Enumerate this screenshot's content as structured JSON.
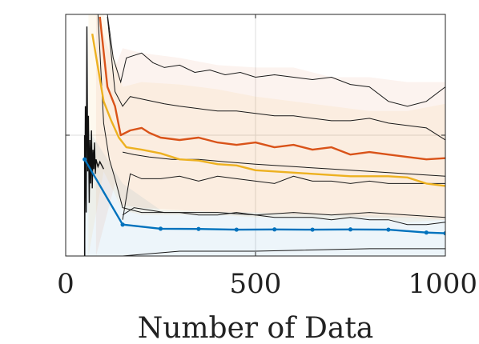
{
  "chart_data": {
    "type": "line",
    "title": "",
    "xlabel": "Number of Data",
    "ylabel": "",
    "xlim": [
      0,
      1000
    ],
    "ylim": [
      0,
      1
    ],
    "x_ticks": [
      0,
      500,
      1000
    ],
    "x_tick_labels": [
      "0",
      "500",
      "1000"
    ],
    "y_ticks": [
      0.5
    ],
    "grid": true,
    "legend": "none",
    "series": [
      {
        "color": "#0072bd",
        "marker": "dot",
        "x": [
          50,
          150,
          250,
          350,
          450,
          550,
          650,
          750,
          850,
          950,
          1000
        ],
        "y": [
          0.4,
          0.13,
          0.113,
          0.112,
          0.109,
          0.11,
          0.109,
          0.11,
          0.109,
          0.097,
          0.094
        ]
      },
      {
        "color": "#edb120",
        "x": [
          70,
          100,
          120,
          140,
          160,
          200,
          250,
          300,
          350,
          400,
          450,
          500,
          550,
          600,
          650,
          700,
          750,
          800,
          850,
          900,
          950,
          1000
        ],
        "y": [
          0.92,
          0.64,
          0.56,
          0.49,
          0.45,
          0.44,
          0.425,
          0.4,
          0.395,
          0.38,
          0.375,
          0.355,
          0.35,
          0.345,
          0.34,
          0.335,
          0.33,
          0.33,
          0.33,
          0.325,
          0.3,
          0.29
        ]
      },
      {
        "color": "#d95319",
        "x": [
          90,
          110,
          130,
          145,
          170,
          200,
          220,
          250,
          300,
          350,
          400,
          450,
          500,
          550,
          600,
          650,
          700,
          750,
          800,
          850,
          900,
          950,
          1000
        ],
        "y": [
          0.99,
          0.7,
          0.62,
          0.5,
          0.52,
          0.53,
          0.51,
          0.49,
          0.48,
          0.49,
          0.47,
          0.46,
          0.47,
          0.45,
          0.46,
          0.44,
          0.45,
          0.42,
          0.43,
          0.42,
          0.41,
          0.4,
          0.405
        ]
      }
    ],
    "bands": [
      {
        "color": "#0072bd",
        "x": [
          50,
          150,
          250,
          500,
          800,
          1000
        ],
        "upper": [
          0.55,
          0.3,
          0.19,
          0.18,
          0.17,
          0.155
        ],
        "lower": [
          0.0,
          0.0,
          0.0,
          0.0,
          0.0,
          0.0
        ]
      },
      {
        "color": "#edb120",
        "x": [
          60,
          100,
          150,
          200,
          300,
          400,
          500,
          600,
          700,
          800,
          900,
          1000
        ],
        "upper": [
          1.0,
          1.0,
          0.7,
          0.72,
          0.71,
          0.69,
          0.66,
          0.64,
          0.62,
          0.6,
          0.6,
          0.63
        ],
        "lower": [
          0.0,
          0.35,
          0.19,
          0.17,
          0.17,
          0.17,
          0.16,
          0.16,
          0.15,
          0.16,
          0.14,
          0.15
        ]
      },
      {
        "color": "#d95319",
        "x": [
          80,
          130,
          150,
          200,
          300,
          400,
          500,
          600,
          700,
          800,
          900,
          1000
        ],
        "upper": [
          1.0,
          0.78,
          0.86,
          0.84,
          0.82,
          0.79,
          0.78,
          0.78,
          0.74,
          0.74,
          0.72,
          0.72
        ],
        "lower": [
          0.0,
          0.3,
          0.21,
          0.2,
          0.19,
          0.18,
          0.18,
          0.17,
          0.17,
          0.16,
          0.16,
          0.15
        ]
      }
    ],
    "band_edges": [
      {
        "x": [
          110,
          125,
          145,
          160,
          180,
          200,
          230,
          260,
          300,
          340,
          380,
          420,
          460,
          500,
          550,
          600,
          650,
          700,
          750,
          800,
          850,
          900,
          950,
          1000
        ],
        "y": [
          1.0,
          0.82,
          0.72,
          0.82,
          0.83,
          0.84,
          0.8,
          0.78,
          0.79,
          0.76,
          0.77,
          0.75,
          0.76,
          0.74,
          0.75,
          0.74,
          0.73,
          0.74,
          0.71,
          0.7,
          0.64,
          0.62,
          0.64,
          0.7
        ]
      },
      {
        "x": [
          110,
          130,
          150,
          170,
          200,
          230,
          260,
          300,
          350,
          400,
          450,
          500,
          550,
          600,
          650,
          700,
          750,
          800,
          850,
          900,
          950,
          1000
        ],
        "y": [
          0.99,
          0.68,
          0.62,
          0.66,
          0.65,
          0.64,
          0.63,
          0.62,
          0.61,
          0.6,
          0.6,
          0.59,
          0.58,
          0.58,
          0.57,
          0.56,
          0.56,
          0.57,
          0.55,
          0.54,
          0.53,
          0.48
        ]
      },
      {
        "x": [
          85,
          100,
          115,
          130,
          150,
          200,
          300,
          400,
          500,
          600,
          700,
          800,
          900,
          1000
        ],
        "y": [
          1.0,
          0.55,
          0.4,
          0.32,
          0.2,
          0.18,
          0.18,
          0.18,
          0.17,
          0.18,
          0.17,
          0.18,
          0.17,
          0.16
        ]
      },
      {
        "x": [
          150,
          170,
          200,
          250,
          300,
          350,
          400,
          450,
          500,
          550,
          600,
          650,
          700,
          750,
          800,
          850,
          900,
          950,
          1000
        ],
        "y": [
          0.15,
          0.34,
          0.32,
          0.32,
          0.33,
          0.31,
          0.33,
          0.32,
          0.31,
          0.3,
          0.33,
          0.31,
          0.31,
          0.3,
          0.31,
          0.3,
          0.3,
          0.3,
          0.3
        ]
      },
      {
        "x": [
          150,
          180,
          220,
          260,
          300,
          350,
          400,
          450,
          500,
          550,
          600,
          650,
          700,
          750,
          800,
          850,
          900,
          950,
          1000
        ],
        "y": [
          0.17,
          0.2,
          0.19,
          0.18,
          0.18,
          0.17,
          0.17,
          0.18,
          0.17,
          0.16,
          0.16,
          0.16,
          0.15,
          0.16,
          0.15,
          0.15,
          0.13,
          0.13,
          0.14
        ]
      },
      {
        "x": [
          150,
          300,
          500,
          800,
          1000
        ],
        "y": [
          0.0,
          0.02,
          0.02,
          0.03,
          0.03
        ]
      },
      {
        "x": [
          150,
          180,
          220,
          280,
          350,
          420,
          500,
          600,
          700,
          800,
          900,
          1000
        ],
        "y": [
          0.43,
          0.42,
          0.41,
          0.4,
          0.4,
          0.39,
          0.38,
          0.37,
          0.36,
          0.35,
          0.34,
          0.33
        ]
      }
    ],
    "spike": {
      "x": [
        50,
        52,
        54,
        56,
        58,
        60,
        62,
        64,
        66,
        68,
        70,
        72,
        74,
        76,
        78,
        80,
        85,
        90,
        100
      ],
      "y": [
        0.0,
        0.62,
        0.18,
        0.95,
        0.35,
        0.58,
        0.22,
        0.48,
        0.3,
        0.52,
        0.28,
        0.44,
        0.36,
        0.47,
        0.34,
        0.4,
        0.37,
        0.39,
        0.36
      ]
    }
  }
}
